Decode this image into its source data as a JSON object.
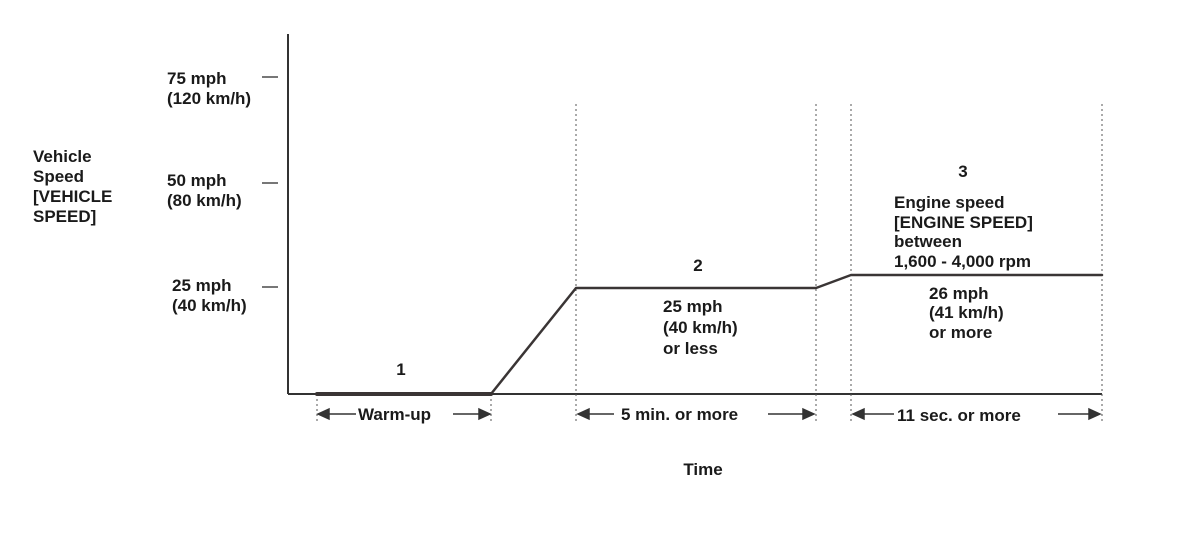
{
  "y_axis": {
    "label_lines": [
      "Vehicle",
      "Speed",
      "[VEHICLE",
      "SPEED]"
    ],
    "ticks": [
      {
        "mph": 75,
        "line1": "75 mph",
        "line2": "(120 km/h)"
      },
      {
        "mph": 50,
        "line1": "50 mph",
        "line2": "(80 km/h)"
      },
      {
        "mph": 25,
        "line1": "25 mph",
        "line2": "(40 km/h)"
      }
    ]
  },
  "x_axis": {
    "label": "Time"
  },
  "phases": [
    {
      "number": "1",
      "duration_label": "Warm-up",
      "speed_lines": []
    },
    {
      "number": "2",
      "duration_label": "5 min. or more",
      "speed_lines": [
        "25 mph",
        "(40 km/h)",
        "or less"
      ]
    },
    {
      "number": "3",
      "duration_label": "11 sec. or more",
      "speed_lines": [
        "26 mph",
        "(41 km/h)",
        "or more"
      ],
      "condition_lines": [
        "Engine speed",
        "[ENGINE SPEED]",
        "between",
        "1,600 - 4,000 rpm"
      ]
    }
  ],
  "speed_profile_mph": [
    {
      "phase": 1,
      "start_mph": 1,
      "end_mph": 1
    },
    {
      "phase": "ramp",
      "start_mph": 1,
      "end_mph": 25
    },
    {
      "phase": 2,
      "start_mph": 25,
      "end_mph": 25
    },
    {
      "phase": "ramp",
      "start_mph": 25,
      "end_mph": 28
    },
    {
      "phase": 3,
      "start_mph": 28,
      "end_mph": 28
    }
  ]
}
